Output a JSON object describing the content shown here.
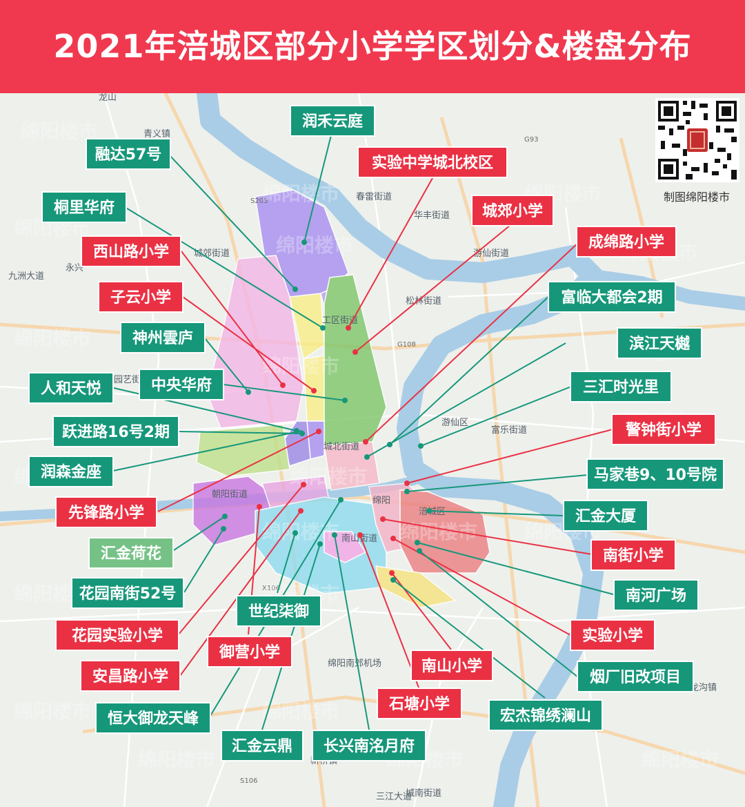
{
  "title": "2021年涪城区部分小学学区划分&楼盘分布",
  "credit": "制图绵阳楼市",
  "watermark": "绵阳楼市",
  "colors": {
    "header": "#f0394f",
    "school_label": "#ea3144",
    "estate_label": "#16977a",
    "estate_label_light": "#76c286",
    "river": "#a9cde6"
  },
  "places": [
    "龙山",
    "青义镇",
    "春雷街道",
    "华丰街道",
    "游仙街道",
    "城郊街道",
    "松林街道",
    "工区街道",
    "九洲大道",
    "永兴",
    "园艺街道",
    "游仙区",
    "富乐街道",
    "城北街道",
    "绵阳",
    "涪城区",
    "朝阳街道",
    "南山街道",
    "绵阳南郊机场",
    "新桥镇",
    "三江大道",
    "城南街道",
    "龙沟镇",
    "X106",
    "S106",
    "S205",
    "G108",
    "G93"
  ],
  "schools": [
    "实验中学城北校区",
    "城郊小学",
    "成绵路小学",
    "西山路小学",
    "子云小学",
    "警钟街小学",
    "南街小学",
    "实验小学",
    "先锋路小学",
    "花园实验小学",
    "御营小学",
    "安昌路小学",
    "南山小学",
    "石塘小学"
  ],
  "estates": [
    "润禾云庭",
    "融达57号",
    "桐里华府",
    "富临大都会2期",
    "滨江天樾",
    "神州雲庐",
    "人和天悦",
    "中央华府",
    "三汇时光里",
    "跃进路16号2期",
    "润森金座",
    "马家巷9、10号院",
    "汇金大厦",
    "汇金荷花",
    "南河广场",
    "花园南街52号",
    "世纪柒御",
    "烟厂旧改项目",
    "恒大御龙天峰",
    "宏杰锦绣澜山",
    "汇金云鼎",
    "长兴南洺月府"
  ]
}
